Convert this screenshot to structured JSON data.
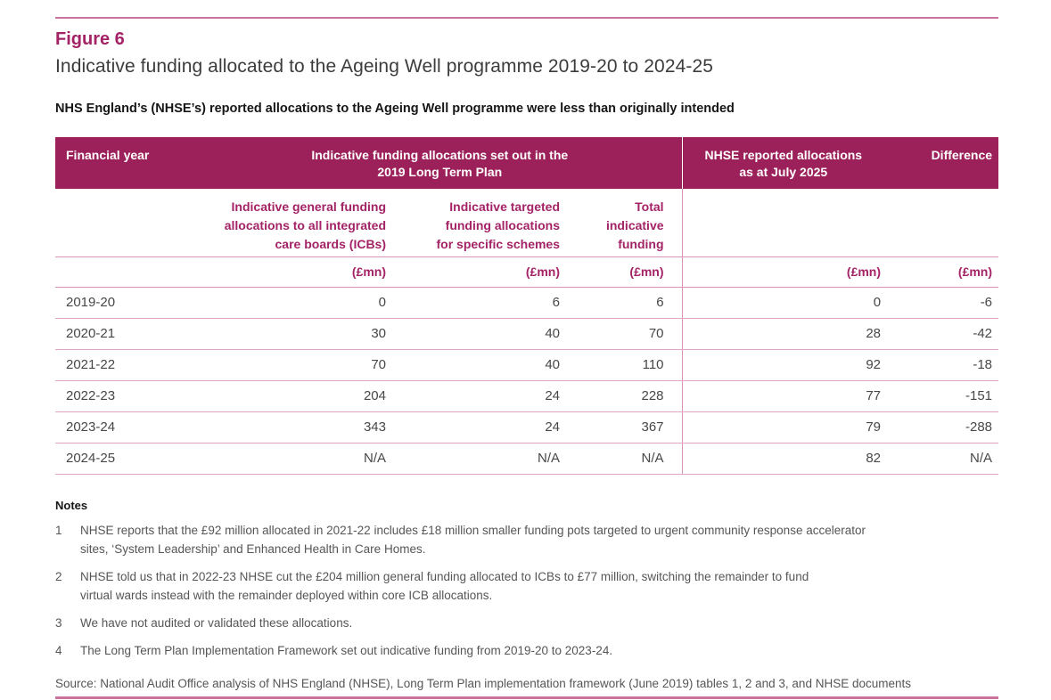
{
  "figure": {
    "label": "Figure 6",
    "title": "Indicative funding allocated to the Ageing Well programme 2019-20 to 2024-25",
    "subtitle": "NHS England’s (NHSE’s) reported allocations to the Ageing Well programme were less than originally intended"
  },
  "colors": {
    "header_bg": "#9c215a",
    "accent_text": "#a32366",
    "rule_pink": "#c9739f",
    "row_line": "#e0a6c4"
  },
  "table": {
    "header": {
      "financial_year": "Financial year",
      "ltp_group": "Indicative funding allocations set out in the\n2019 Long Term Plan",
      "nhse_reported": "NHSE reported allocations\nas at July 2025",
      "difference": "Difference"
    },
    "subheaders": {
      "general": "Indicative general funding\nallocations to all integrated\ncare boards (ICBs)",
      "targeted": "Indicative targeted\nfunding allocations\nfor specific schemes",
      "total": "Total\nindicative\nfunding"
    },
    "unit": "(£mn)",
    "rows": [
      {
        "year": "2019-20",
        "general": "0",
        "targeted": "6",
        "total": "6",
        "reported": "0",
        "difference": "-6"
      },
      {
        "year": "2020-21",
        "general": "30",
        "targeted": "40",
        "total": "70",
        "reported": "28",
        "difference": "-42"
      },
      {
        "year": "2021-22",
        "general": "70",
        "targeted": "40",
        "total": "110",
        "reported": "92",
        "difference": "-18"
      },
      {
        "year": "2022-23",
        "general": "204",
        "targeted": "24",
        "total": "228",
        "reported": "77",
        "difference": "-151"
      },
      {
        "year": "2023-24",
        "general": "343",
        "targeted": "24",
        "total": "367",
        "reported": "79",
        "difference": "-288"
      },
      {
        "year": "2024-25",
        "general": "N/A",
        "targeted": "N/A",
        "total": "N/A",
        "reported": "82",
        "difference": "N/A"
      }
    ]
  },
  "notes": {
    "heading": "Notes",
    "items": [
      {
        "num": "1",
        "text": "NHSE reports that the £92 million allocated in 2021-22 includes £18 million smaller funding pots targeted to urgent community response accelerator\nsites, ‘System Leadership’ and Enhanced Health in Care Homes."
      },
      {
        "num": "2",
        "text": "NHSE told us that in 2022-23 NHSE cut the £204 million general funding allocated to ICBs to £77 million, switching the remainder to fund\nvirtual wards instead with the remainder deployed within core ICB allocations."
      },
      {
        "num": "3",
        "text": "We have not audited or validated these allocations."
      },
      {
        "num": "4",
        "text": "The Long Term Plan Implementation Framework set out indicative funding from 2019-20 to 2023-24."
      }
    ]
  },
  "source": "Source: National Audit Office analysis of NHS England (NHSE), Long Term Plan implementation framework (June 2019) tables 1, 2 and 3, and NHSE documents"
}
